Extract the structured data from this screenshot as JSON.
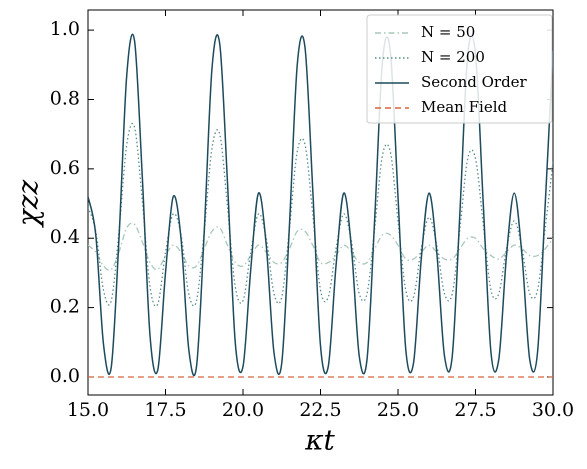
{
  "chart_data": {
    "type": "line",
    "xlabel": "κt",
    "ylabel": "χzz",
    "xlim": [
      15,
      30
    ],
    "ylim": [
      -0.052,
      1.058
    ],
    "xticks": [
      {
        "value": 15,
        "label": "15.0"
      },
      17.5,
      {
        "value": 20,
        "label": "20.0"
      },
      22.5,
      {
        "value": 25,
        "label": "25.0"
      },
      27.5,
      {
        "value": 30,
        "label": "30.0"
      }
    ],
    "yticks": [
      {
        "value": 0,
        "label": "0.0"
      },
      0.2,
      0.4,
      0.6,
      0.8,
      {
        "value": 1,
        "label": "1.0"
      }
    ],
    "legend": "upper right",
    "x": [
      15,
      15.25,
      15.5,
      15.75,
      16,
      16.25,
      16.5,
      16.75,
      17,
      17.25,
      17.5,
      17.75,
      18,
      18.25,
      18.5,
      18.75,
      19,
      19.25,
      19.5,
      19.75,
      20,
      20.25,
      20.5,
      20.75,
      21,
      21.25,
      21.5,
      21.75,
      22,
      22.25,
      22.5,
      22.75,
      23,
      23.25,
      23.5,
      23.75,
      24,
      24.25,
      24.5,
      24.75,
      25,
      25.25,
      25.5,
      25.75,
      26,
      26.25,
      26.5,
      26.75,
      27,
      27.25,
      27.5,
      27.75,
      28,
      28.25,
      28.5,
      28.75,
      29,
      29.25,
      29.5,
      29.75,
      30
    ],
    "series": [
      {
        "name": "N = 50",
        "color": "#a9c9b9",
        "linestyle": "dashdot",
        "values": [
          0.38,
          0.36,
          0.32,
          0.31,
          0.36,
          0.43,
          0.44,
          0.39,
          0.33,
          0.31,
          0.35,
          0.38,
          0.36,
          0.32,
          0.32,
          0.37,
          0.42,
          0.43,
          0.38,
          0.33,
          0.32,
          0.35,
          0.38,
          0.36,
          0.33,
          0.33,
          0.37,
          0.42,
          0.42,
          0.38,
          0.33,
          0.33,
          0.35,
          0.38,
          0.36,
          0.33,
          0.33,
          0.37,
          0.41,
          0.41,
          0.38,
          0.34,
          0.34,
          0.36,
          0.38,
          0.36,
          0.34,
          0.34,
          0.37,
          0.4,
          0.4,
          0.37,
          0.35,
          0.34,
          0.36,
          0.38,
          0.37,
          0.35,
          0.35,
          0.37,
          0.4
        ]
      },
      {
        "name": "N = 200",
        "color": "#5b8c8c",
        "linestyle": "dotted",
        "values": [
          0.49,
          0.42,
          0.25,
          0.22,
          0.42,
          0.67,
          0.72,
          0.51,
          0.26,
          0.21,
          0.36,
          0.47,
          0.41,
          0.24,
          0.22,
          0.42,
          0.66,
          0.7,
          0.49,
          0.26,
          0.22,
          0.36,
          0.47,
          0.4,
          0.24,
          0.23,
          0.43,
          0.65,
          0.67,
          0.47,
          0.25,
          0.23,
          0.37,
          0.47,
          0.39,
          0.24,
          0.24,
          0.43,
          0.64,
          0.65,
          0.45,
          0.25,
          0.23,
          0.37,
          0.46,
          0.38,
          0.24,
          0.24,
          0.43,
          0.63,
          0.63,
          0.44,
          0.25,
          0.24,
          0.37,
          0.45,
          0.37,
          0.24,
          0.25,
          0.43,
          0.62
        ]
      },
      {
        "name": "Second Order",
        "color": "#1d4a5c",
        "linestyle": "solid",
        "values": [
          0.52,
          0.41,
          0.094,
          0.028,
          0.4,
          0.87,
          0.97,
          0.58,
          0.12,
          0.02,
          0.3,
          0.52,
          0.4,
          0.08,
          0.03,
          0.42,
          0.89,
          0.96,
          0.56,
          0.1,
          0.03,
          0.31,
          0.53,
          0.38,
          0.07,
          0.04,
          0.44,
          0.9,
          0.95,
          0.54,
          0.09,
          0.03,
          0.32,
          0.53,
          0.37,
          0.06,
          0.05,
          0.46,
          0.91,
          0.94,
          0.52,
          0.08,
          0.04,
          0.34,
          0.53,
          0.36,
          0.06,
          0.06,
          0.48,
          0.93,
          0.93,
          0.5,
          0.07,
          0.05,
          0.35,
          0.53,
          0.35,
          0.05,
          0.07,
          0.5,
          0.94
        ]
      },
      {
        "name": "Mean Field",
        "color": "#d8643c",
        "linestyle": "dashed",
        "x": [
          15,
          30
        ],
        "values": [
          0,
          0
        ]
      }
    ]
  }
}
